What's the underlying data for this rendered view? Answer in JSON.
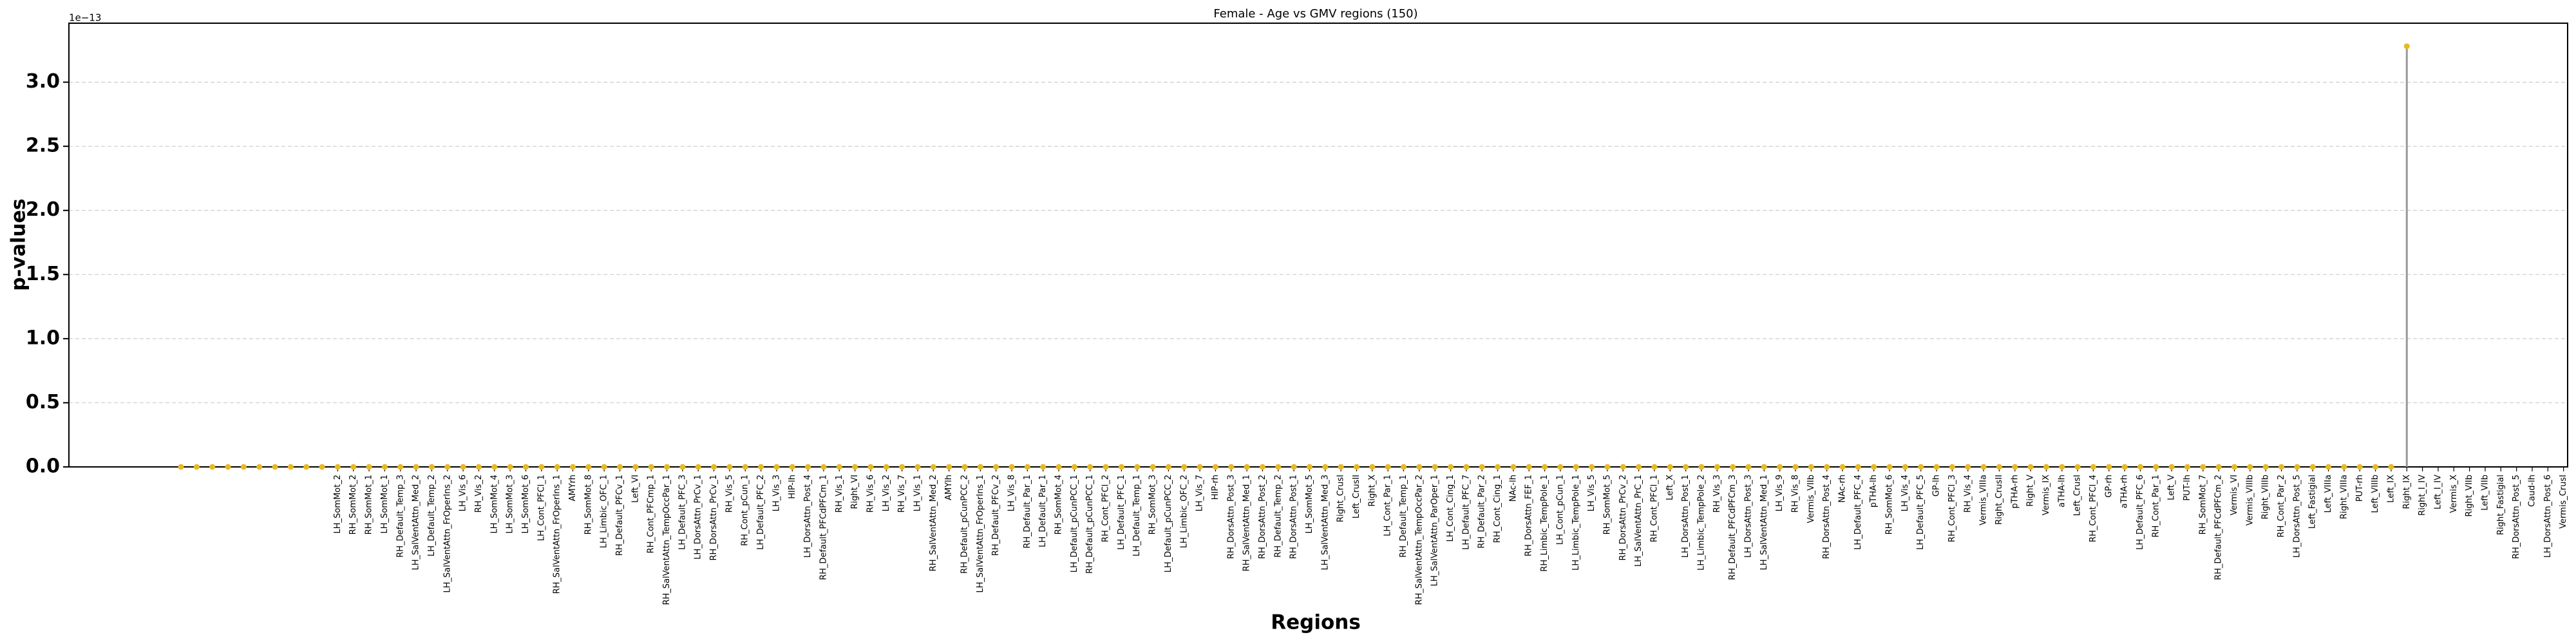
{
  "chart_data": {
    "type": "stem",
    "title": "Female - Age vs GMV regions (150)",
    "x_label": "Regions",
    "y_label": "p-values",
    "y_offset_label": "1e−13",
    "marker_color": "#e8b923",
    "stem_color": "#999999",
    "grid": true,
    "ylim": [
      0,
      3.46
    ],
    "yticks": [
      {
        "value": 0,
        "label": "0.0"
      },
      0.5,
      {
        "value": 1,
        "label": "1.0"
      },
      1.5,
      {
        "value": 2,
        "label": "2.0"
      },
      2.5,
      {
        "value": 3,
        "label": "3.0"
      }
    ],
    "categories": [
      null,
      null,
      null,
      null,
      null,
      null,
      null,
      null,
      null,
      null,
      "LH_SomMot_2",
      "RH_SomMot_2",
      "RH_SomMot_1",
      "LH_SomMot_1",
      "RH_Default_Temp_3",
      "LH_SalVentAttn_Med_2",
      "LH_Default_Temp_2",
      "LH_SalVentAttn_FrOperIns_2",
      "LH_Vis_6",
      "RH_Vis_2",
      "LH_SomMot_4",
      "LH_SomMot_3",
      "LH_SomMot_6",
      "LH_Cont_PFCl_1",
      "RH_SalVentAttn_FrOperIns_1",
      "AMYrh",
      "RH_SomMot_8",
      "LH_Limbic_OFC_1",
      "RH_Default_PFCv_1",
      "Left_VI",
      "RH_Cont_PFCmp_1",
      "RH_SalVentAttn_TempOccPar_1",
      "LH_Default_PFC_3",
      "LH_DorsAttn_PrCv_1",
      "RH_DorsAttn_PrCv_1",
      "RH_Vis_5",
      "RH_Cont_pCun_1",
      "LH_Default_PFC_2",
      "LH_Vis_3",
      "HIP-lh",
      "LH_DorsAttn_Post_4",
      "RH_Default_PFCdPFCm_1",
      "RH_Vis_1",
      "Right_VI",
      "RH_Vis_6",
      "LH_Vis_2",
      "RH_Vis_7",
      "LH_Vis_1",
      "RH_SalVentAttn_Med_2",
      "AMYlh",
      "RH_Default_pCunPCC_2",
      "LH_SalVentAttn_FrOperIns_1",
      "RH_Default_PFCv_2",
      "LH_Vis_8",
      "RH_Default_Par_1",
      "LH_Default_Par_1",
      "RH_SomMot_4",
      "LH_Default_pCunPCC_1",
      "RH_Default_pCunPCC_1",
      "RH_Cont_PFCl_2",
      "LH_Default_PFC_1",
      "LH_Default_Temp_1",
      "RH_SomMot_3",
      "LH_Default_pCunPCC_2",
      "LH_Limbic_OFC_2",
      "LH_Vis_7",
      "HIP-rh",
      "RH_DorsAttn_Post_3",
      "RH_SalVentAttn_Med_1",
      "RH_DorsAttn_Post_2",
      "RH_Default_Temp_2",
      "RH_DorsAttn_Post_1",
      "LH_SomMot_5",
      "LH_SalVentAttn_Med_3",
      "Right_CrusI",
      "Left_CrusII",
      "Right_X",
      "LH_Cont_Par_1",
      "RH_Default_Temp_1",
      "RH_SalVentAttn_TempOccPar_2",
      "LH_SalVentAttn_ParOper_1",
      "LH_Cont_Cing_1",
      "LH_Default_PFC_7",
      "RH_Default_Par_2",
      "RH_Cont_Cing_1",
      "NAc-lh",
      "RH_DorsAttn_FEF_1",
      "RH_Limbic_TempPole_1",
      "LH_Cont_pCun_1",
      "LH_Limbic_TempPole_1",
      "LH_Vis_5",
      "RH_SomMot_5",
      "RH_DorsAttn_PrCv_2",
      "LH_SalVentAttn_PrC_1",
      "RH_Cont_PFCl_1",
      "Left_X",
      "LH_DorsAttn_Post_1",
      "LH_Limbic_TempPole_2",
      "RH_Vis_3",
      "RH_Default_PFCdPFCm_3",
      "LH_DorsAttn_Post_3",
      "LH_SalVentAttn_Med_1",
      "LH_Vis_9",
      "RH_Vis_8",
      "Vermis_VIIb",
      "RH_DorsAttn_Post_4",
      "NAc-rh",
      "LH_Default_PFC_4",
      "pTHA-lh",
      "RH_SomMot_6",
      "LH_Vis_4",
      "LH_Default_PFC_5",
      "GP-lh",
      "RH_Cont_PFCl_3",
      "RH_Vis_4",
      "Vermis_VIIIa",
      "Right_CrusII",
      "pTHA-rh",
      "Right_V",
      "Vermis_IX",
      "aTHA-lh",
      "Left_CrusI",
      "RH_Cont_PFCl_4",
      "GP-rh",
      "aTHA-rh",
      "LH_Default_PFC_6",
      "RH_Cont_Par_1",
      "Left_V",
      "PUT-lh",
      "RH_SomMot_7",
      "RH_Default_PFCdPFCm_2",
      "Vermis_VI",
      "Vermis_VIIIb",
      "Right_VIIIb",
      "RH_Cont_Par_2",
      "LH_DorsAttn_Post_5",
      "Left_Fastigial",
      "Left_VIIIa",
      "Right_VIIIa",
      "PUT-rh",
      "Left_VIIIb",
      "Left_IX",
      "Right_IX",
      "Right_I_IV",
      "Left_I_IV",
      "Vermis_X",
      "Right_VIIb",
      "Left_VIIb",
      "Right_Fastigial",
      "RH_DorsAttn_Post_5",
      "Caud-lh",
      "LH_DorsAttn_Post_6",
      "Vermis_CrusI"
    ],
    "values": [
      0,
      0,
      0,
      0,
      0,
      0,
      0,
      0,
      0,
      0,
      0,
      0,
      0,
      0,
      0,
      0,
      0,
      0,
      0,
      0,
      0,
      0,
      0,
      0,
      0,
      0,
      0,
      0,
      0,
      0,
      0,
      0,
      0,
      0,
      0,
      0,
      0,
      0,
      0,
      0,
      0,
      0,
      0,
      0,
      0,
      0,
      0,
      0,
      0,
      0,
      0,
      0,
      0,
      0,
      0,
      0,
      0,
      0,
      0,
      0,
      0,
      0,
      0,
      0,
      0,
      0,
      0,
      0,
      0,
      0,
      0,
      0,
      0,
      0,
      0,
      0,
      0,
      0,
      0,
      0,
      0,
      0,
      0,
      0,
      0,
      0,
      0,
      0,
      0,
      0,
      0,
      0,
      0,
      0,
      0,
      0,
      0,
      0,
      0,
      0,
      0,
      0,
      0,
      0,
      0,
      0,
      0,
      0,
      0,
      0,
      0,
      0,
      0,
      0,
      0,
      0,
      0,
      0,
      0,
      0,
      0,
      0,
      0,
      0,
      0,
      0,
      0,
      0,
      0,
      0,
      0,
      0,
      0,
      0,
      0,
      0,
      0,
      0,
      0,
      0,
      0,
      0,
      3.28,
      null,
      null,
      null,
      null,
      null,
      null,
      null,
      null,
      null,
      null
    ]
  }
}
